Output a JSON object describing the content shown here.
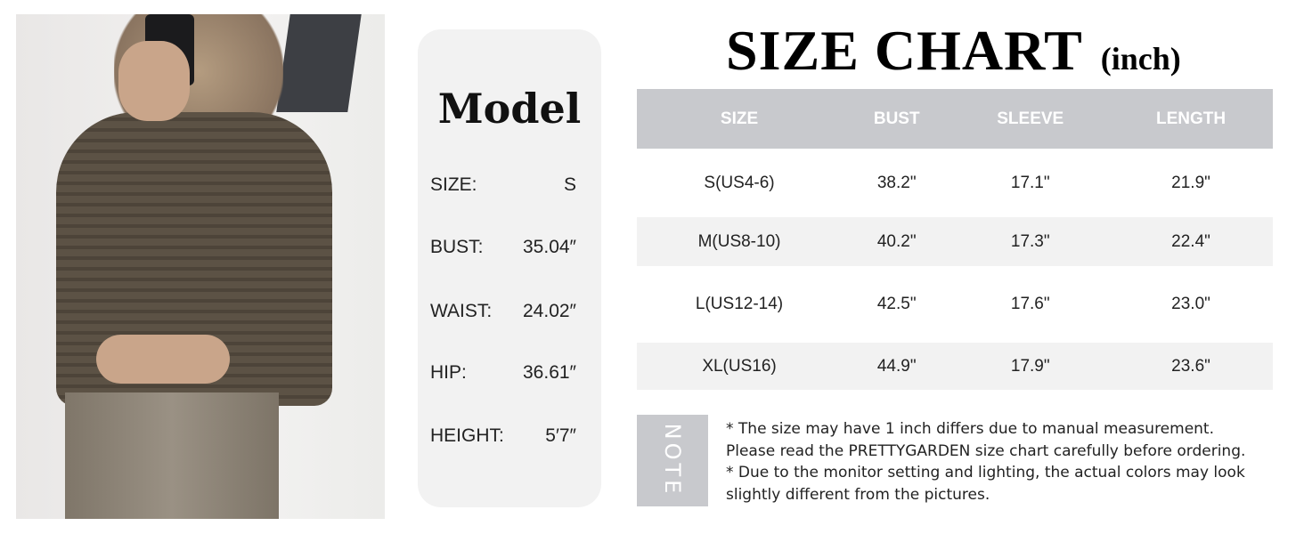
{
  "model": {
    "title": "Model",
    "rows": [
      {
        "label": "SIZE:",
        "value": "S"
      },
      {
        "label": "BUST:",
        "value": "35.04″"
      },
      {
        "label": "WAIST:",
        "value": "24.02″"
      },
      {
        "label": "HIP:",
        "value": "36.61″"
      },
      {
        "label": "HEIGHT:",
        "value": "5′7″"
      }
    ]
  },
  "chart": {
    "title": "SIZE CHART",
    "unit": "(inch)",
    "headers": [
      "SIZE",
      "BUST",
      "SLEEVE",
      "LENGTH"
    ],
    "rows": [
      [
        "S(US4-6)",
        "38.2\"",
        "17.1\"",
        "21.9\""
      ],
      [
        "M(US8-10)",
        "40.2\"",
        "17.3\"",
        "22.4\""
      ],
      [
        "L(US12-14)",
        "42.5\"",
        "17.6\"",
        "23.0\""
      ],
      [
        "XL(US16)",
        "44.9\"",
        "17.9\"",
        "23.6\""
      ]
    ]
  },
  "note": {
    "label": "NOTE",
    "lines": [
      "* The size may have 1 inch differs due to manual measurement.",
      "Please read the PRETTYGARDEN size chart carefully before ordering.",
      "* Due to the monitor setting and lighting, the actual colors may look",
      "slightly different from the pictures."
    ]
  },
  "colors": {
    "header_bg": "#c8c9cd",
    "stripe_bg": "#f2f2f2"
  }
}
